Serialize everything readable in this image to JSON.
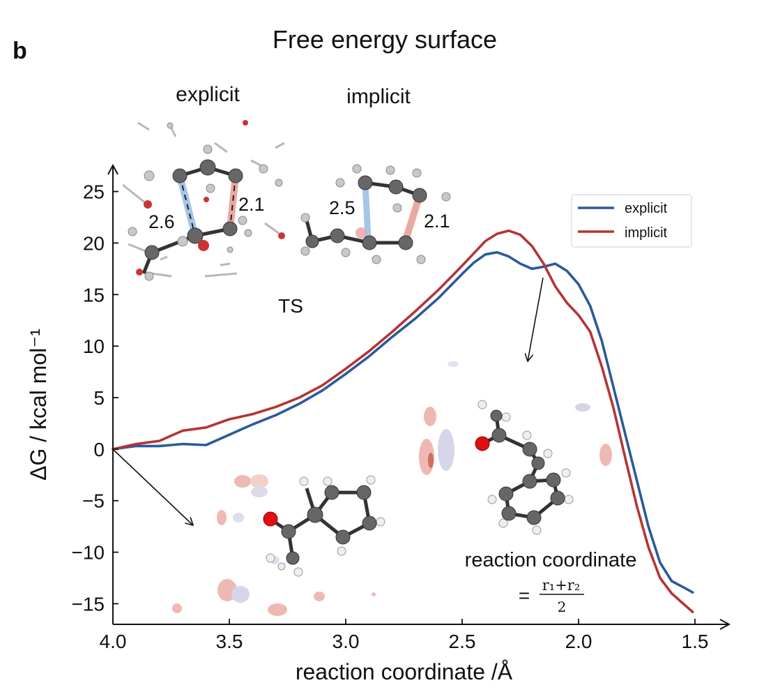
{
  "panel_label": "b",
  "figure_title": "Free energy surface",
  "insets": {
    "explicit_label": "explicit",
    "implicit_label": "implicit",
    "ts_label": "TS",
    "explicit_distances": [
      "2.6",
      "2.1"
    ],
    "implicit_distances": [
      "2.5",
      "2.1"
    ]
  },
  "annotation": {
    "line1": "reaction coordinate",
    "eq_sign": "=",
    "numerator": "r₁+r₂",
    "denominator": "2"
  },
  "colors": {
    "explicit": "#2a5a9a",
    "implicit": "#b53434",
    "atom_carbon": "#555555",
    "atom_oxygen": "#dd1111",
    "atom_hydrogen": "#eeeeee",
    "isosurface_red": "#e9a29a",
    "isosurface_blue": "#c3c3dd"
  },
  "chart_data": {
    "type": "line",
    "title": "Free energy surface",
    "xlabel": "reaction coordinate /Å",
    "ylabel": "ΔG / kcal mol⁻¹",
    "xlim": [
      4.0,
      1.5
    ],
    "ylim": [
      -17,
      27
    ],
    "x_reversed": true,
    "xticks": [
      4.0,
      3.5,
      3.0,
      2.5,
      2.0,
      1.5
    ],
    "xtick_labels": [
      "4.0",
      "3.5",
      "3.0",
      "2.5",
      "2.0",
      "1.5"
    ],
    "yticks": [
      -15,
      -10,
      -5,
      0,
      5,
      10,
      15,
      20,
      25
    ],
    "ytick_labels": [
      "−15",
      "−10",
      "−5",
      "0",
      "5",
      "10",
      "15",
      "20",
      "25"
    ],
    "grid": false,
    "legend_position": "top-right",
    "series": [
      {
        "name": "explicit",
        "x": [
          4.0,
          3.9,
          3.8,
          3.7,
          3.6,
          3.5,
          3.4,
          3.3,
          3.2,
          3.1,
          3.0,
          2.9,
          2.8,
          2.7,
          2.6,
          2.5,
          2.45,
          2.4,
          2.35,
          2.3,
          2.25,
          2.2,
          2.15,
          2.1,
          2.05,
          2.0,
          1.95,
          1.9,
          1.85,
          1.8,
          1.75,
          1.7,
          1.65,
          1.6,
          1.55,
          1.51
        ],
        "y": [
          0.0,
          0.3,
          0.3,
          0.5,
          0.4,
          1.4,
          2.4,
          3.3,
          4.4,
          5.7,
          7.3,
          9.0,
          10.9,
          12.7,
          14.7,
          17.0,
          18.1,
          18.9,
          19.1,
          18.7,
          18.0,
          17.5,
          17.7,
          18.0,
          17.3,
          16.0,
          13.9,
          10.5,
          6.0,
          1.5,
          -3.0,
          -7.5,
          -11.0,
          -12.8,
          -13.4,
          -13.9
        ]
      },
      {
        "name": "implicit",
        "x": [
          4.0,
          3.9,
          3.8,
          3.7,
          3.6,
          3.5,
          3.4,
          3.3,
          3.2,
          3.1,
          3.0,
          2.9,
          2.8,
          2.7,
          2.6,
          2.5,
          2.45,
          2.4,
          2.35,
          2.3,
          2.25,
          2.2,
          2.15,
          2.1,
          2.05,
          2.0,
          1.95,
          1.9,
          1.85,
          1.8,
          1.75,
          1.7,
          1.65,
          1.6,
          1.55,
          1.51
        ],
        "y": [
          0.0,
          0.5,
          0.8,
          1.8,
          2.1,
          2.9,
          3.4,
          4.1,
          5.0,
          6.2,
          7.8,
          9.5,
          11.4,
          13.4,
          15.5,
          17.8,
          19.0,
          20.2,
          20.9,
          21.2,
          20.8,
          19.7,
          18.0,
          15.8,
          14.2,
          13.0,
          11.4,
          8.0,
          4.0,
          -0.8,
          -5.5,
          -9.5,
          -12.5,
          -14.0,
          -15.0,
          -15.8
        ]
      }
    ]
  }
}
